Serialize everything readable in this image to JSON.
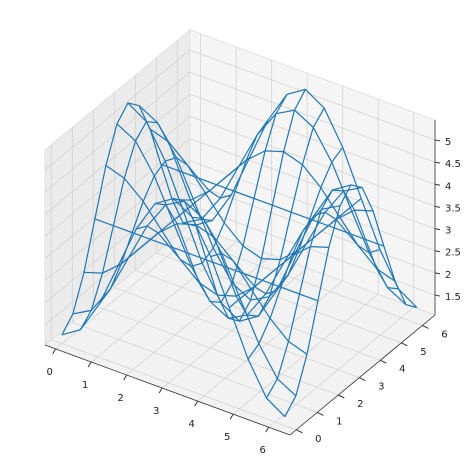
{
  "chart_data": {
    "type": "wireframe",
    "x": [
      0,
      0.52,
      1.05,
      1.57,
      2.09,
      2.62,
      3.14,
      3.67,
      4.19,
      4.71,
      5.24,
      5.76,
      6.28
    ],
    "y": [
      0,
      0.52,
      1.05,
      1.57,
      2.09,
      2.62,
      3.14,
      3.67,
      4.19,
      4.71,
      5.24,
      5.76,
      6.28
    ],
    "z": [
      [
        1.25,
        1.518,
        2.25,
        3.25,
        4.25,
        4.982,
        5.25,
        4.982,
        4.25,
        3.25,
        2.25,
        1.518,
        1.25
      ],
      [
        1.518,
        1.75,
        2.384,
        3.25,
        4.116,
        4.75,
        4.982,
        4.75,
        4.116,
        3.25,
        2.384,
        1.75,
        1.518
      ],
      [
        2.25,
        2.384,
        2.75,
        3.25,
        3.75,
        4.116,
        4.25,
        4.116,
        3.75,
        3.25,
        2.75,
        2.384,
        2.25
      ],
      [
        3.25,
        3.25,
        3.25,
        3.25,
        3.25,
        3.25,
        3.25,
        3.25,
        3.25,
        3.25,
        3.25,
        3.25,
        3.25
      ],
      [
        4.25,
        4.116,
        3.75,
        3.25,
        2.75,
        2.384,
        2.25,
        2.384,
        2.75,
        3.25,
        3.75,
        4.116,
        4.25
      ],
      [
        4.982,
        4.75,
        4.116,
        3.25,
        2.384,
        1.75,
        1.518,
        1.75,
        2.384,
        3.25,
        4.116,
        4.75,
        4.982
      ],
      [
        5.25,
        4.982,
        4.25,
        3.25,
        2.25,
        1.518,
        1.25,
        1.518,
        2.25,
        3.25,
        4.25,
        4.982,
        5.25
      ],
      [
        4.982,
        4.75,
        4.116,
        3.25,
        2.384,
        1.75,
        1.518,
        1.75,
        2.384,
        3.25,
        4.116,
        4.75,
        4.982
      ],
      [
        4.25,
        4.116,
        3.75,
        3.25,
        2.75,
        2.384,
        2.25,
        2.384,
        2.75,
        3.25,
        3.75,
        4.116,
        4.25
      ],
      [
        3.25,
        3.25,
        3.25,
        3.25,
        3.25,
        3.25,
        3.25,
        3.25,
        3.25,
        3.25,
        3.25,
        3.25,
        3.25
      ],
      [
        2.25,
        2.384,
        2.75,
        3.25,
        3.75,
        4.116,
        4.25,
        4.116,
        3.75,
        3.25,
        2.75,
        2.384,
        2.25
      ],
      [
        1.518,
        1.75,
        2.384,
        3.25,
        4.116,
        4.75,
        4.982,
        4.75,
        4.116,
        3.25,
        2.384,
        1.75,
        1.518
      ],
      [
        1.25,
        1.518,
        2.25,
        3.25,
        4.25,
        4.982,
        5.25,
        4.982,
        4.25,
        3.25,
        2.25,
        1.518,
        1.25
      ]
    ],
    "color": "#1f77b4",
    "xlim": [
      -0.3,
      6.6
    ],
    "ylim": [
      -0.3,
      6.6
    ],
    "zlim": [
      1.05,
      5.45
    ],
    "xticks": [
      0,
      1,
      2,
      3,
      4,
      5,
      6
    ],
    "yticks": [
      0,
      1,
      2,
      3,
      4,
      5,
      6
    ],
    "zticks": [
      1.5,
      2.0,
      2.5,
      3.0,
      3.5,
      4.0,
      4.5,
      5.0
    ],
    "grid": true
  }
}
